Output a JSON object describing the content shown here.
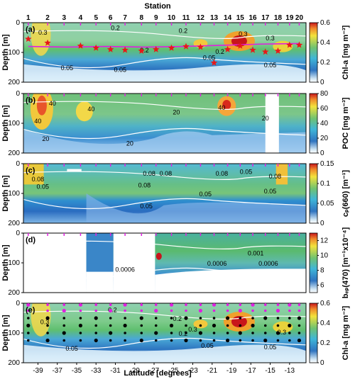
{
  "station_title": "Station",
  "stations": [
    "1",
    "2",
    "3",
    "4",
    "5",
    "6",
    "7",
    "8",
    "9",
    "10",
    "11",
    "12",
    "13",
    "14",
    "15",
    "16",
    "17",
    "18",
    "19",
    "20"
  ],
  "station_lat": [
    -40,
    -38,
    -36.3,
    -34.6,
    -33,
    -31.5,
    -30,
    -28.3,
    -26.8,
    -25.2,
    -23.7,
    -22.2,
    -20.8,
    -19.4,
    -18.1,
    -16.8,
    -15.5,
    -14.2,
    -13,
    -12
  ],
  "xaxis": {
    "label": "Latitude [degrees]",
    "ticks": [
      -39,
      -37,
      -35,
      -33,
      -31,
      -29,
      -27,
      -25,
      -23,
      -21,
      -19,
      -17,
      -15,
      -13
    ],
    "range": [
      -40.5,
      -11.3
    ]
  },
  "depth_label": "Depth [m]",
  "panel_y_ticks": [
    0,
    100,
    200
  ],
  "colors": {
    "magenta_line": "#e020e0",
    "star": "#e81818",
    "contour": "#ffffff"
  },
  "chart_data": [
    {
      "type": "heatmap",
      "panel": "(a)",
      "ylabel": "Depth [m]",
      "ylim": [
        0,
        200
      ],
      "colorbar_label": "Chl-a [mg m⁻³]",
      "colorbar_ticks": [
        "0",
        "0.2",
        "0.4",
        "0.6"
      ],
      "colorbar_range": [
        0,
        0.6
      ],
      "contour_labels": [
        {
          "text": "0.3",
          "lat": -38.5,
          "depth": 40
        },
        {
          "text": "0.2",
          "lat": -31,
          "depth": 25
        },
        {
          "text": "0.2",
          "lat": -24,
          "depth": 35
        },
        {
          "text": "0.3",
          "lat": -15,
          "depth": 60
        },
        {
          "text": "0.3",
          "lat": -17.8,
          "depth": 45
        },
        {
          "text": "0.2",
          "lat": -28,
          "depth": 100
        },
        {
          "text": "0.2",
          "lat": -20.2,
          "depth": 105
        },
        {
          "text": "0.05",
          "lat": -36,
          "depth": 160
        },
        {
          "text": "0.05",
          "lat": -30.5,
          "depth": 165
        },
        {
          "text": "0.05",
          "lat": -21.3,
          "depth": 125
        },
        {
          "text": "0.05",
          "lat": -15,
          "depth": 150
        }
      ],
      "dcm_stars": [
        {
          "lat": -40,
          "depth": 55
        },
        {
          "lat": -38,
          "depth": 68
        },
        {
          "lat": -34.6,
          "depth": 78
        },
        {
          "lat": -33,
          "depth": 85
        },
        {
          "lat": -31.5,
          "depth": 90
        },
        {
          "lat": -30,
          "depth": 92
        },
        {
          "lat": -28.3,
          "depth": 95
        },
        {
          "lat": -26.8,
          "depth": 90
        },
        {
          "lat": -25.2,
          "depth": 85
        },
        {
          "lat": -23.7,
          "depth": 80
        },
        {
          "lat": -22.2,
          "depth": 82
        },
        {
          "lat": -20.8,
          "depth": 135
        },
        {
          "lat": -19.4,
          "depth": 90
        },
        {
          "lat": -18.1,
          "depth": 78
        },
        {
          "lat": -16.8,
          "depth": 92
        },
        {
          "lat": -15.5,
          "depth": 98
        },
        {
          "lat": -14.2,
          "depth": 95
        },
        {
          "lat": -13,
          "depth": 75
        },
        {
          "lat": -12,
          "depth": 75
        }
      ],
      "mld_line": [
        {
          "lat": -40,
          "depth": 80
        },
        {
          "lat": -36,
          "depth": 82
        },
        {
          "lat": -32,
          "depth": 80
        },
        {
          "lat": -28,
          "depth": 82
        },
        {
          "lat": -24,
          "depth": 80
        },
        {
          "lat": -20,
          "depth": 76
        },
        {
          "lat": -16,
          "depth": 72
        },
        {
          "lat": -12,
          "depth": 70
        }
      ]
    },
    {
      "type": "heatmap",
      "panel": "(b)",
      "ylabel": "Depth [m]",
      "ylim": [
        0,
        200
      ],
      "colorbar_label": "POC [mg m⁻³]",
      "colorbar_ticks": [
        "0",
        "20",
        "40",
        "60",
        "80"
      ],
      "colorbar_range": [
        0,
        80
      ],
      "no_data_lat": [
        -15.5,
        -14.1
      ],
      "contour_labels": [
        {
          "text": "40",
          "lat": -37.5,
          "depth": 40
        },
        {
          "text": "40",
          "lat": -33.5,
          "depth": 60
        },
        {
          "text": "40",
          "lat": -39,
          "depth": 100
        },
        {
          "text": "20",
          "lat": -38.2,
          "depth": 160
        },
        {
          "text": "20",
          "lat": -29.5,
          "depth": 175
        },
        {
          "text": "20",
          "lat": -24.7,
          "depth": 70
        },
        {
          "text": "40",
          "lat": -20,
          "depth": 55
        },
        {
          "text": "20",
          "lat": -15.5,
          "depth": 90
        }
      ]
    },
    {
      "type": "heatmap",
      "panel": "(c)",
      "ylabel": "Depth [m]",
      "ylim": [
        0,
        200
      ],
      "colorbar_label": "cₚ(660) [m⁻¹]",
      "colorbar_ticks": [
        "0",
        "0.05",
        "0.1",
        "0.15"
      ],
      "colorbar_range": [
        0,
        0.15
      ],
      "contour_labels": [
        {
          "text": "0.08",
          "lat": -39,
          "depth": 60
        },
        {
          "text": "0.05",
          "lat": -38.5,
          "depth": 85
        },
        {
          "text": "0.08",
          "lat": -27.5,
          "depth": 40
        },
        {
          "text": "0.08",
          "lat": -25.8,
          "depth": 40
        },
        {
          "text": "0.08",
          "lat": -28,
          "depth": 80
        },
        {
          "text": "0.05",
          "lat": -27.8,
          "depth": 150
        },
        {
          "text": "0.05",
          "lat": -21.7,
          "depth": 110
        },
        {
          "text": "0.08",
          "lat": -20,
          "depth": 40
        },
        {
          "text": "0.05",
          "lat": -17.5,
          "depth": 35
        },
        {
          "text": "0.08",
          "lat": -14.5,
          "depth": 50
        },
        {
          "text": "0.05",
          "lat": -15,
          "depth": 100
        }
      ]
    },
    {
      "type": "heatmap",
      "panel": "(d)",
      "ylabel": "Depth [m]",
      "ylim": [
        0,
        200
      ],
      "colorbar_label": "bₑₚ(470) [m⁻¹x10⁻⁴]",
      "colorbar_ticks": [
        "6",
        "8",
        "10",
        "12"
      ],
      "colorbar_range": [
        5,
        13
      ],
      "data_lat_ranges": [
        [
          -34,
          -31.2
        ],
        [
          -26.9,
          -11.3
        ]
      ],
      "contour_labels": [
        {
          "text": "0.001",
          "lat": -16.5,
          "depth": 75
        },
        {
          "text": "0.0006",
          "lat": -30,
          "depth": 130
        },
        {
          "text": "0.0006",
          "lat": -20.5,
          "depth": 110
        },
        {
          "text": "0.0006",
          "lat": -15.2,
          "depth": 110
        }
      ]
    },
    {
      "type": "heatmap",
      "panel": "(e)",
      "ylabel": "Depth [m]",
      "ylim": [
        0,
        200
      ],
      "colorbar_label": "Chl-a [mg m⁻³]",
      "colorbar_ticks": [
        "0",
        "0.2",
        "0.4",
        "0.6"
      ],
      "colorbar_range": [
        0,
        0.6
      ],
      "contour_labels": [
        {
          "text": "0.3",
          "lat": -38.3,
          "depth": 70
        },
        {
          "text": "0.2",
          "lat": -31.3,
          "depth": 30
        },
        {
          "text": "0.2",
          "lat": -24.6,
          "depth": 60
        },
        {
          "text": "0.3",
          "lat": -23,
          "depth": 95
        },
        {
          "text": "0.2",
          "lat": -24,
          "depth": 110
        },
        {
          "text": "0.05",
          "lat": -35.5,
          "depth": 160
        },
        {
          "text": "0.05",
          "lat": -21.5,
          "depth": 150
        },
        {
          "text": "0.05",
          "lat": -15,
          "depth": 155
        },
        {
          "text": "0.3",
          "lat": -13.8,
          "depth": 105
        }
      ],
      "sample_depths": [
        5,
        25,
        50,
        75,
        100,
        125
      ]
    }
  ]
}
